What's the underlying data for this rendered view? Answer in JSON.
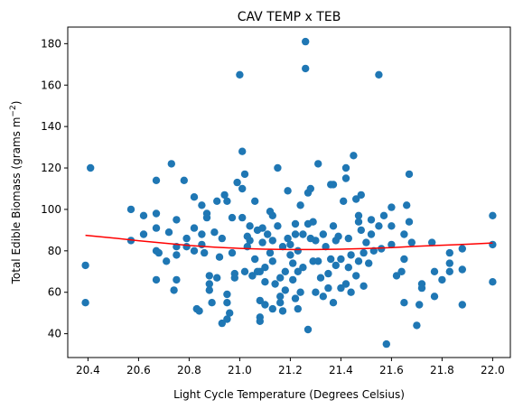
{
  "chart_data": {
    "type": "scatter",
    "title": "CAV TEMP x TEB",
    "xlabel": "Light Cycle Temperature (Degrees Celsius)",
    "ylabel": "Total Edible Biomass (grams m",
    "ylabel_sup": "−2",
    "ylabel_suffix": ")",
    "xlim": [
      20.32,
      22.07
    ],
    "ylim": [
      28.5,
      188
    ],
    "xticks": [
      20.4,
      20.6,
      20.8,
      21.0,
      21.2,
      21.4,
      21.6,
      21.8,
      22.0
    ],
    "xtick_labels": [
      "20.4",
      "20.6",
      "20.8",
      "21.0",
      "21.2",
      "21.4",
      "21.6",
      "21.8",
      "22.0"
    ],
    "yticks": [
      40,
      60,
      80,
      100,
      120,
      140,
      160,
      180
    ],
    "ytick_labels": [
      "40",
      "60",
      "80",
      "100",
      "120",
      "140",
      "160",
      "180"
    ],
    "grid": false,
    "colors": {
      "points": "#1f77b4",
      "fit": "#ff0000"
    },
    "series": [
      {
        "type": "scatter",
        "points": [
          [
            20.39,
            73
          ],
          [
            20.39,
            55
          ],
          [
            20.41,
            120
          ],
          [
            20.57,
            100
          ],
          [
            20.57,
            85
          ],
          [
            20.62,
            97
          ],
          [
            20.62,
            88
          ],
          [
            20.67,
            114
          ],
          [
            20.67,
            98
          ],
          [
            20.67,
            91
          ],
          [
            20.67,
            80
          ],
          [
            20.68,
            79
          ],
          [
            20.67,
            66
          ],
          [
            20.71,
            75
          ],
          [
            20.72,
            89
          ],
          [
            20.73,
            122
          ],
          [
            20.75,
            95
          ],
          [
            20.75,
            82
          ],
          [
            20.75,
            78
          ],
          [
            20.74,
            61
          ],
          [
            20.75,
            66
          ],
          [
            20.78,
            114
          ],
          [
            20.79,
            86
          ],
          [
            20.79,
            82
          ],
          [
            20.82,
            106
          ],
          [
            20.82,
            91
          ],
          [
            20.82,
            80
          ],
          [
            20.83,
            52
          ],
          [
            20.84,
            51
          ],
          [
            20.85,
            102
          ],
          [
            20.85,
            88
          ],
          [
            20.85,
            83
          ],
          [
            20.86,
            79
          ],
          [
            20.87,
            96
          ],
          [
            20.87,
            98
          ],
          [
            20.88,
            68
          ],
          [
            20.88,
            64
          ],
          [
            20.88,
            61
          ],
          [
            20.89,
            55
          ],
          [
            20.9,
            89
          ],
          [
            20.91,
            104
          ],
          [
            20.91,
            67
          ],
          [
            20.92,
            77
          ],
          [
            20.93,
            86
          ],
          [
            20.94,
            107
          ],
          [
            20.95,
            104
          ],
          [
            20.93,
            45
          ],
          [
            20.95,
            47
          ],
          [
            20.96,
            50
          ],
          [
            20.95,
            55
          ],
          [
            20.95,
            59
          ],
          [
            20.97,
            79
          ],
          [
            20.97,
            96
          ],
          [
            20.98,
            69
          ],
          [
            20.99,
            113
          ],
          [
            20.98,
            67
          ],
          [
            21.0,
            165
          ],
          [
            21.01,
            110
          ],
          [
            21.01,
            128
          ],
          [
            21.02,
            117
          ],
          [
            21.01,
            96
          ],
          [
            21.02,
            70
          ],
          [
            21.03,
            82
          ],
          [
            21.03,
            87
          ],
          [
            21.04,
            92
          ],
          [
            21.04,
            85
          ],
          [
            21.05,
            68
          ],
          [
            21.05,
            68
          ],
          [
            21.06,
            104
          ],
          [
            21.06,
            76
          ],
          [
            21.07,
            70
          ],
          [
            21.07,
            90
          ],
          [
            21.08,
            70
          ],
          [
            21.08,
            56
          ],
          [
            21.08,
            48
          ],
          [
            21.08,
            46
          ],
          [
            21.09,
            91
          ],
          [
            21.09,
            84
          ],
          [
            21.1,
            72
          ],
          [
            21.1,
            65
          ],
          [
            21.1,
            54
          ],
          [
            21.11,
            88
          ],
          [
            21.12,
            99
          ],
          [
            21.12,
            79
          ],
          [
            21.13,
            97
          ],
          [
            21.13,
            85
          ],
          [
            21.13,
            75
          ],
          [
            21.13,
            52
          ],
          [
            21.14,
            64
          ],
          [
            21.15,
            92
          ],
          [
            21.15,
            120
          ],
          [
            21.16,
            67
          ],
          [
            21.16,
            58
          ],
          [
            21.16,
            55
          ],
          [
            21.17,
            82
          ],
          [
            21.17,
            51
          ],
          [
            21.18,
            61
          ],
          [
            21.18,
            70
          ],
          [
            21.19,
            109
          ],
          [
            21.19,
            86
          ],
          [
            21.2,
            83
          ],
          [
            21.2,
            78
          ],
          [
            21.21,
            74
          ],
          [
            21.21,
            66
          ],
          [
            21.22,
            57
          ],
          [
            21.22,
            93
          ],
          [
            21.22,
            88
          ],
          [
            21.23,
            80
          ],
          [
            21.23,
            70
          ],
          [
            21.23,
            52
          ],
          [
            21.24,
            60
          ],
          [
            21.24,
            102
          ],
          [
            21.25,
            88
          ],
          [
            21.25,
            72
          ],
          [
            21.26,
            181
          ],
          [
            21.26,
            168
          ],
          [
            21.27,
            108
          ],
          [
            21.27,
            93
          ],
          [
            21.27,
            42
          ],
          [
            21.28,
            110
          ],
          [
            21.28,
            86
          ],
          [
            21.29,
            94
          ],
          [
            21.29,
            75
          ],
          [
            21.3,
            85
          ],
          [
            21.3,
            60
          ],
          [
            21.31,
            75
          ],
          [
            21.31,
            122
          ],
          [
            21.32,
            67
          ],
          [
            21.33,
            58
          ],
          [
            21.33,
            88
          ],
          [
            21.34,
            82
          ],
          [
            21.35,
            62
          ],
          [
            21.35,
            69
          ],
          [
            21.36,
            112
          ],
          [
            21.36,
            76
          ],
          [
            21.37,
            112
          ],
          [
            21.37,
            92
          ],
          [
            21.37,
            55
          ],
          [
            21.38,
            85
          ],
          [
            21.38,
            73
          ],
          [
            21.39,
            87
          ],
          [
            21.4,
            62
          ],
          [
            21.4,
            76
          ],
          [
            21.41,
            104
          ],
          [
            21.42,
            120
          ],
          [
            21.42,
            115
          ],
          [
            21.42,
            64
          ],
          [
            21.43,
            86
          ],
          [
            21.43,
            72
          ],
          [
            21.44,
            78
          ],
          [
            21.44,
            60
          ],
          [
            21.45,
            126
          ],
          [
            21.46,
            105
          ],
          [
            21.46,
            68
          ],
          [
            21.47,
            94
          ],
          [
            21.47,
            97
          ],
          [
            21.47,
            75
          ],
          [
            21.48,
            107
          ],
          [
            21.48,
            90
          ],
          [
            21.49,
            79
          ],
          [
            21.49,
            63
          ],
          [
            21.5,
            84
          ],
          [
            21.51,
            74
          ],
          [
            21.52,
            95
          ],
          [
            21.52,
            88
          ],
          [
            21.53,
            80
          ],
          [
            21.55,
            165
          ],
          [
            21.55,
            92
          ],
          [
            21.56,
            81
          ],
          [
            21.57,
            97
          ],
          [
            21.58,
            35
          ],
          [
            21.6,
            101
          ],
          [
            21.6,
            92
          ],
          [
            21.6,
            83
          ],
          [
            21.62,
            68
          ],
          [
            21.64,
            70
          ],
          [
            21.65,
            88
          ],
          [
            21.65,
            76
          ],
          [
            21.65,
            55
          ],
          [
            21.66,
            102
          ],
          [
            21.67,
            117
          ],
          [
            21.67,
            94
          ],
          [
            21.68,
            84
          ],
          [
            21.7,
            44
          ],
          [
            21.71,
            54
          ],
          [
            21.72,
            64
          ],
          [
            21.72,
            62
          ],
          [
            21.76,
            84
          ],
          [
            21.77,
            58
          ],
          [
            21.77,
            70
          ],
          [
            21.8,
            66
          ],
          [
            21.83,
            79
          ],
          [
            21.83,
            74
          ],
          [
            21.83,
            70
          ],
          [
            21.88,
            81
          ],
          [
            21.88,
            71
          ],
          [
            21.88,
            54
          ],
          [
            22.0,
            97
          ],
          [
            22.0,
            83
          ],
          [
            22.0,
            65
          ]
        ]
      },
      {
        "type": "line",
        "points": [
          [
            20.39,
            87.5
          ],
          [
            20.5,
            86.2
          ],
          [
            20.6,
            84.9
          ],
          [
            20.7,
            83.7
          ],
          [
            20.8,
            82.6
          ],
          [
            20.9,
            81.8
          ],
          [
            21.0,
            81.2
          ],
          [
            21.1,
            80.8
          ],
          [
            21.2,
            80.6
          ],
          [
            21.3,
            80.6
          ],
          [
            21.4,
            80.8
          ],
          [
            21.5,
            81.1
          ],
          [
            21.6,
            81.6
          ],
          [
            21.7,
            82.2
          ],
          [
            21.8,
            82.7
          ],
          [
            21.9,
            83.2
          ],
          [
            22.0,
            83.8
          ]
        ]
      }
    ]
  }
}
